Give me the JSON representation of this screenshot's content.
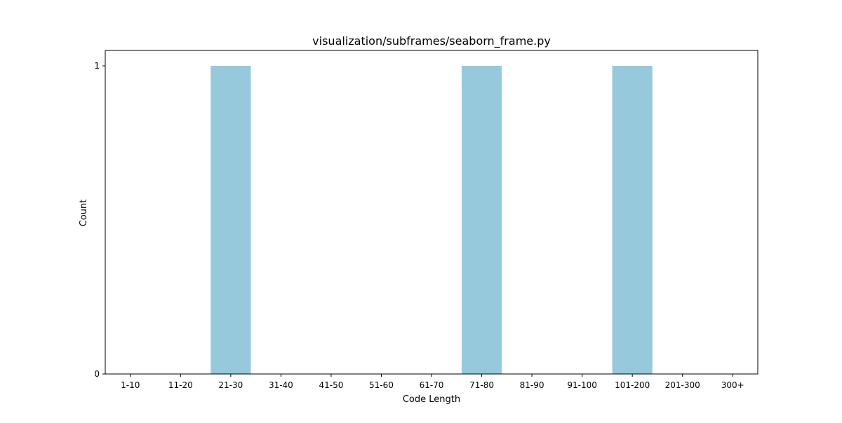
{
  "chart_data": {
    "type": "bar",
    "title": "visualization/subframes/seaborn_frame.py",
    "xlabel": "Code Length",
    "ylabel": "Count",
    "categories": [
      "1-10",
      "11-20",
      "21-30",
      "31-40",
      "41-50",
      "51-60",
      "61-70",
      "71-80",
      "81-90",
      "91-100",
      "101-200",
      "201-300",
      "300+"
    ],
    "values": [
      0,
      0,
      1,
      0,
      0,
      0,
      0,
      1,
      0,
      0,
      1,
      0,
      0
    ],
    "ylim": [
      0,
      1.05
    ],
    "yticks": [
      0,
      1
    ],
    "grid": false,
    "legend": "none",
    "bar_color": "#96c9dc"
  }
}
